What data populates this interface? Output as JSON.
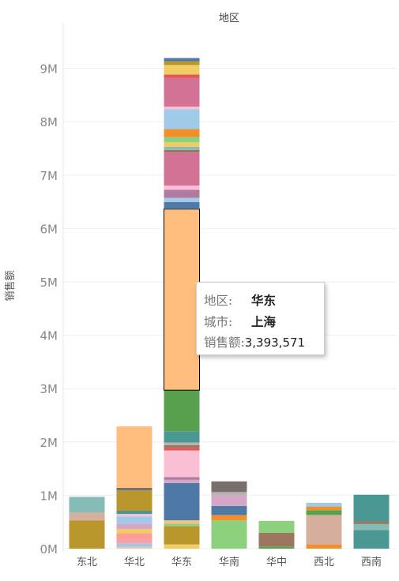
{
  "chart_data": {
    "type": "bar",
    "stacked": true,
    "title": "地区",
    "xlabel": "",
    "ylabel": "销售额",
    "categories": [
      "东北",
      "华北",
      "华东",
      "华南",
      "华中",
      "西北",
      "西南"
    ],
    "yticks": [
      "0M",
      "1M",
      "2M",
      "3M",
      "4M",
      "5M",
      "6M",
      "7M",
      "8M",
      "9M"
    ],
    "ylim": [
      0,
      9500000
    ],
    "grid": true,
    "segments": {
      "东北": [
        {
          "value": 530000,
          "color": "#b9972d"
        },
        {
          "value": 150000,
          "color": "#d6b09f"
        },
        {
          "value": 290000,
          "color": "#86bcb6"
        }
      ],
      "华北": [
        {
          "value": 30000,
          "color": "#e7c9a8"
        },
        {
          "value": 60000,
          "color": "#a0cbe8"
        },
        {
          "value": 50000,
          "color": "#e8a7b8"
        },
        {
          "value": 150000,
          "color": "#ff9d9a"
        },
        {
          "value": 80000,
          "color": "#f1ce63"
        },
        {
          "value": 100000,
          "color": "#d4a6c8"
        },
        {
          "value": 130000,
          "color": "#a0cbe8"
        },
        {
          "value": 50000,
          "color": "#fabfd2"
        },
        {
          "value": 60000,
          "color": "#499894"
        },
        {
          "value": 380000,
          "color": "#b9972d"
        },
        {
          "value": 50000,
          "color": "#79706e"
        },
        {
          "value": 1150000,
          "color": "#ffbe7d"
        }
      ],
      "华东": [
        {
          "value": 80000,
          "color": "#f1ce63"
        },
        {
          "value": 340000,
          "color": "#b9972d"
        },
        {
          "value": 50000,
          "color": "#8cd17d"
        },
        {
          "value": 60000,
          "color": "#ffbe7d"
        },
        {
          "value": 700000,
          "color": "#4e79a7"
        },
        {
          "value": 60000,
          "color": "#d4a6c8"
        },
        {
          "value": 50000,
          "color": "#b07aa1"
        },
        {
          "value": 500000,
          "color": "#fabfd2"
        },
        {
          "value": 50000,
          "color": "#e15759"
        },
        {
          "value": 50000,
          "color": "#9d7660"
        },
        {
          "value": 50000,
          "color": "#bab0ac"
        },
        {
          "value": 210000,
          "color": "#499894"
        },
        {
          "value": 770000,
          "color": "#59a14f"
        },
        {
          "value": 3393571,
          "color": "#ffbe7d",
          "highlighted": true
        },
        {
          "value": 130000,
          "color": "#4e79a7"
        },
        {
          "value": 80000,
          "color": "#a0cbe8"
        },
        {
          "value": 150000,
          "color": "#b07aa1"
        },
        {
          "value": 80000,
          "color": "#fabfd2"
        },
        {
          "value": 620000,
          "color": "#d37295"
        },
        {
          "value": 50000,
          "color": "#9d7660"
        },
        {
          "value": 60000,
          "color": "#86bcb6"
        },
        {
          "value": 80000,
          "color": "#f1ce63"
        },
        {
          "value": 100000,
          "color": "#8cd17d"
        },
        {
          "value": 150000,
          "color": "#f28e2b"
        },
        {
          "value": 370000,
          "color": "#a0cbe8"
        },
        {
          "value": 50000,
          "color": "#fabfd2"
        },
        {
          "value": 540000,
          "color": "#d37295"
        },
        {
          "value": 60000,
          "color": "#e15759"
        },
        {
          "value": 180000,
          "color": "#f1ce63"
        },
        {
          "value": 70000,
          "color": "#b9972d"
        },
        {
          "value": 60000,
          "color": "#4e79a7"
        }
      ],
      "华南": [
        {
          "value": 530000,
          "color": "#8cd17d"
        },
        {
          "value": 100000,
          "color": "#f28e2b"
        },
        {
          "value": 170000,
          "color": "#4e79a7"
        },
        {
          "value": 200000,
          "color": "#d4a6c8"
        },
        {
          "value": 60000,
          "color": "#bab0ac"
        },
        {
          "value": 200000,
          "color": "#79706e"
        }
      ],
      "华中": [
        {
          "value": 40000,
          "color": "#59a14f"
        },
        {
          "value": 260000,
          "color": "#9d7660"
        },
        {
          "value": 220000,
          "color": "#8cd17d"
        }
      ],
      "西北": [
        {
          "value": 80000,
          "color": "#f28e2b"
        },
        {
          "value": 550000,
          "color": "#d6b09f"
        },
        {
          "value": 90000,
          "color": "#59a14f"
        },
        {
          "value": 70000,
          "color": "#f28e2b"
        },
        {
          "value": 70000,
          "color": "#a0cbe8"
        }
      ],
      "西南": [
        {
          "value": 350000,
          "color": "#499894"
        },
        {
          "value": 110000,
          "color": "#86bcb6"
        },
        {
          "value": 50000,
          "color": "#9d7660"
        },
        {
          "value": 500000,
          "color": "#499894"
        }
      ]
    }
  },
  "tooltip": {
    "region_label": "地区:",
    "region_value": "华东",
    "city_label": "城市:",
    "city_value": "上海",
    "sales_label": "销售额:",
    "sales_value": "3,393,571"
  }
}
